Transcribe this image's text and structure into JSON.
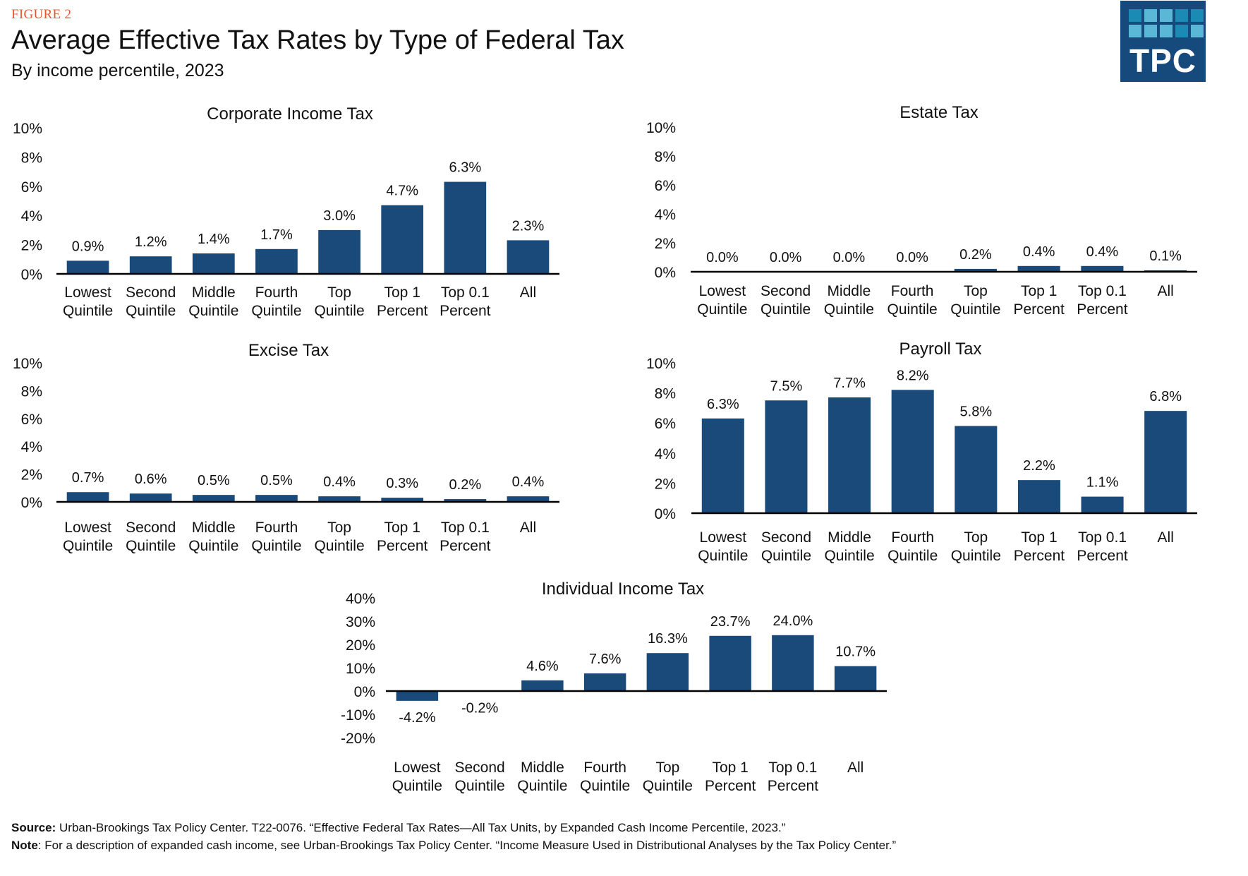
{
  "header": {
    "figure_label": "FIGURE 2",
    "title": "Average Effective Tax Rates by Type of Federal Tax",
    "subtitle": "By income percentile, 2023",
    "logo_text": "TPC"
  },
  "colors": {
    "bar": "#1a4a7a",
    "axis": "#000000",
    "figure_label": "#e4562e",
    "logo_bg": "#174a7c",
    "logo_tiles": [
      "#1b8ab5",
      "#5bb7d6",
      "#5bb7d6",
      "#1b8ab5",
      "#1b8ab5",
      "#5bb7d6",
      "#5bb7d6",
      "#5bb7d6",
      "#1b8ab5",
      "#5bb7d6"
    ]
  },
  "chart_data": [
    {
      "id": "corporate",
      "type": "bar",
      "title": "Corporate Income Tax",
      "categories": [
        [
          "Lowest",
          "Quintile"
        ],
        [
          "Second",
          "Quintile"
        ],
        [
          "Middle",
          "Quintile"
        ],
        [
          "Fourth",
          "Quintile"
        ],
        [
          "Top",
          "Quintile"
        ],
        [
          "Top 1",
          "Percent"
        ],
        [
          "Top 0.1",
          "Percent"
        ],
        [
          "All",
          ""
        ]
      ],
      "values": [
        0.9,
        1.2,
        1.4,
        1.7,
        3.0,
        4.7,
        6.3,
        2.3
      ],
      "data_labels": [
        "0.9%",
        "1.2%",
        "1.4%",
        "1.7%",
        "3.0%",
        "4.7%",
        "6.3%",
        "2.3%"
      ],
      "yticks": [
        0,
        2,
        4,
        6,
        8,
        10
      ],
      "ytick_labels": [
        "0%",
        "2%",
        "4%",
        "6%",
        "8%",
        "10%"
      ],
      "ylim": [
        0,
        10
      ],
      "xlabel": "",
      "ylabel": "",
      "grid": false
    },
    {
      "id": "estate",
      "type": "bar",
      "title": "Estate Tax",
      "categories": [
        [
          "Lowest",
          "Quintile"
        ],
        [
          "Second",
          "Quintile"
        ],
        [
          "Middle",
          "Quintile"
        ],
        [
          "Fourth",
          "Quintile"
        ],
        [
          "Top",
          "Quintile"
        ],
        [
          "Top 1",
          "Percent"
        ],
        [
          "Top 0.1",
          "Percent"
        ],
        [
          "All",
          ""
        ]
      ],
      "values": [
        0.0,
        0.0,
        0.0,
        0.0,
        0.2,
        0.4,
        0.4,
        0.1
      ],
      "data_labels": [
        "0.0%",
        "0.0%",
        "0.0%",
        "0.0%",
        "0.2%",
        "0.4%",
        "0.4%",
        "0.1%"
      ],
      "yticks": [
        0,
        2,
        4,
        6,
        8,
        10
      ],
      "ytick_labels": [
        "0%",
        "2%",
        "4%",
        "6%",
        "8%",
        "10%"
      ],
      "ylim": [
        0,
        10
      ],
      "xlabel": "",
      "ylabel": "",
      "grid": false
    },
    {
      "id": "excise",
      "type": "bar",
      "title": "Excise Tax",
      "categories": [
        [
          "Lowest",
          "Quintile"
        ],
        [
          "Second",
          "Quintile"
        ],
        [
          "Middle",
          "Quintile"
        ],
        [
          "Fourth",
          "Quintile"
        ],
        [
          "Top",
          "Quintile"
        ],
        [
          "Top 1",
          "Percent"
        ],
        [
          "Top 0.1",
          "Percent"
        ],
        [
          "All",
          ""
        ]
      ],
      "values": [
        0.7,
        0.6,
        0.5,
        0.5,
        0.4,
        0.3,
        0.2,
        0.4
      ],
      "data_labels": [
        "0.7%",
        "0.6%",
        "0.5%",
        "0.5%",
        "0.4%",
        "0.3%",
        "0.2%",
        "0.4%"
      ],
      "yticks": [
        0,
        2,
        4,
        6,
        8,
        10
      ],
      "ytick_labels": [
        "0%",
        "2%",
        "4%",
        "6%",
        "8%",
        "10%"
      ],
      "ylim": [
        0,
        10
      ],
      "xlabel": "",
      "ylabel": "",
      "grid": false
    },
    {
      "id": "payroll",
      "type": "bar",
      "title": "Payroll Tax",
      "categories": [
        [
          "Lowest",
          "Quintile"
        ],
        [
          "Second",
          "Quintile"
        ],
        [
          "Middle",
          "Quintile"
        ],
        [
          "Fourth",
          "Quintile"
        ],
        [
          "Top",
          "Quintile"
        ],
        [
          "Top 1",
          "Percent"
        ],
        [
          "Top 0.1",
          "Percent"
        ],
        [
          "All",
          ""
        ]
      ],
      "values": [
        6.3,
        7.5,
        7.7,
        8.2,
        5.8,
        2.2,
        1.1,
        6.8
      ],
      "data_labels": [
        "6.3%",
        "7.5%",
        "7.7%",
        "8.2%",
        "5.8%",
        "2.2%",
        "1.1%",
        "6.8%"
      ],
      "yticks": [
        0,
        2,
        4,
        6,
        8,
        10
      ],
      "ytick_labels": [
        "0%",
        "2%",
        "4%",
        "6%",
        "8%",
        "10%"
      ],
      "ylim": [
        0,
        10
      ],
      "xlabel": "",
      "ylabel": "",
      "grid": false
    },
    {
      "id": "individual",
      "type": "bar",
      "title": "Individual Income Tax",
      "categories": [
        [
          "Lowest",
          "Quintile"
        ],
        [
          "Second",
          "Quintile"
        ],
        [
          "Middle",
          "Quintile"
        ],
        [
          "Fourth",
          "Quintile"
        ],
        [
          "Top",
          "Quintile"
        ],
        [
          "Top 1",
          "Percent"
        ],
        [
          "Top 0.1",
          "Percent"
        ],
        [
          "All",
          ""
        ]
      ],
      "values": [
        -4.2,
        -0.2,
        4.6,
        7.6,
        16.3,
        23.7,
        24.0,
        10.7
      ],
      "data_labels": [
        "-4.2%",
        "-0.2%",
        "4.6%",
        "7.6%",
        "16.3%",
        "23.7%",
        "24.0%",
        "10.7%"
      ],
      "yticks": [
        -20,
        -10,
        0,
        10,
        20,
        30,
        40
      ],
      "ytick_labels": [
        "-20%",
        "-10%",
        "0%",
        "10%",
        "20%",
        "30%",
        "40%"
      ],
      "ylim": [
        -20,
        40
      ],
      "xlabel": "",
      "ylabel": "",
      "grid": false
    }
  ],
  "footer": {
    "source_label": "Source:",
    "source_text": " Urban-Brookings Tax Policy Center. T22-0076.  “Effective Federal Tax Rates—All Tax Units, by Expanded Cash Income Percentile, 2023.”",
    "note_label": "Note",
    "note_text": ": For a description of expanded cash income, see Urban-Brookings Tax Policy Center.  “Income Measure Used in Distributional Analyses by the Tax Policy Center.”"
  }
}
